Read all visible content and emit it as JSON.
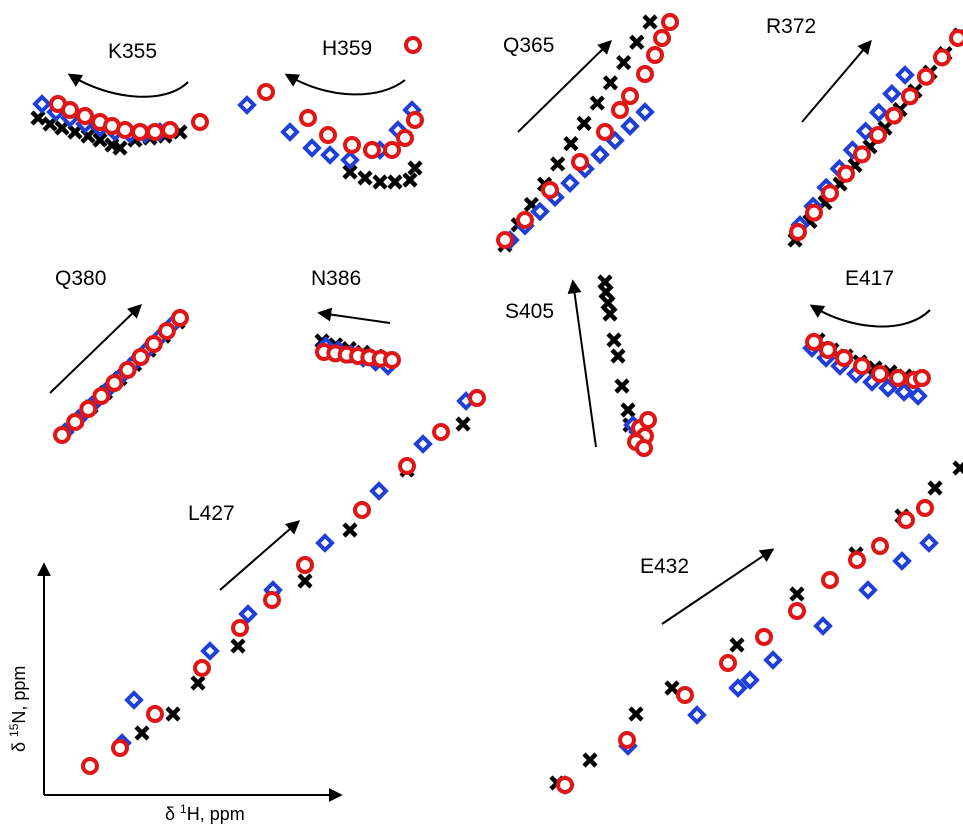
{
  "chart_data": {
    "type": "scatter",
    "description_axes": {
      "xlabel": "δ 1H, ppm",
      "ylabel": "δ 15N, ppm"
    },
    "series_colors": {
      "black_x": "#000000",
      "blue_diamond": "#1f3fd6",
      "red_circle": "#e01515"
    },
    "panels": [
      {
        "label": "K355",
        "arrow": "curved-left"
      },
      {
        "label": "H359",
        "arrow": "curved-left"
      },
      {
        "label": "Q365",
        "arrow": "up-right"
      },
      {
        "label": "R372",
        "arrow": "up-right"
      },
      {
        "label": "Q380",
        "arrow": "up-right"
      },
      {
        "label": "N386",
        "arrow": "left"
      },
      {
        "label": "S405",
        "arrow": "up"
      },
      {
        "label": "E417",
        "arrow": "curved-left"
      },
      {
        "label": "L427",
        "arrow": "up-right"
      },
      {
        "label": "E432",
        "arrow": "up-right"
      }
    ]
  },
  "axes": {
    "xlabel_prefix": "δ ",
    "xlabel_sup": "1",
    "xlabel_main": "H, ppm",
    "ylabel_prefix": "δ ",
    "ylabel_sup": "15",
    "ylabel_main": "N, ppm"
  }
}
